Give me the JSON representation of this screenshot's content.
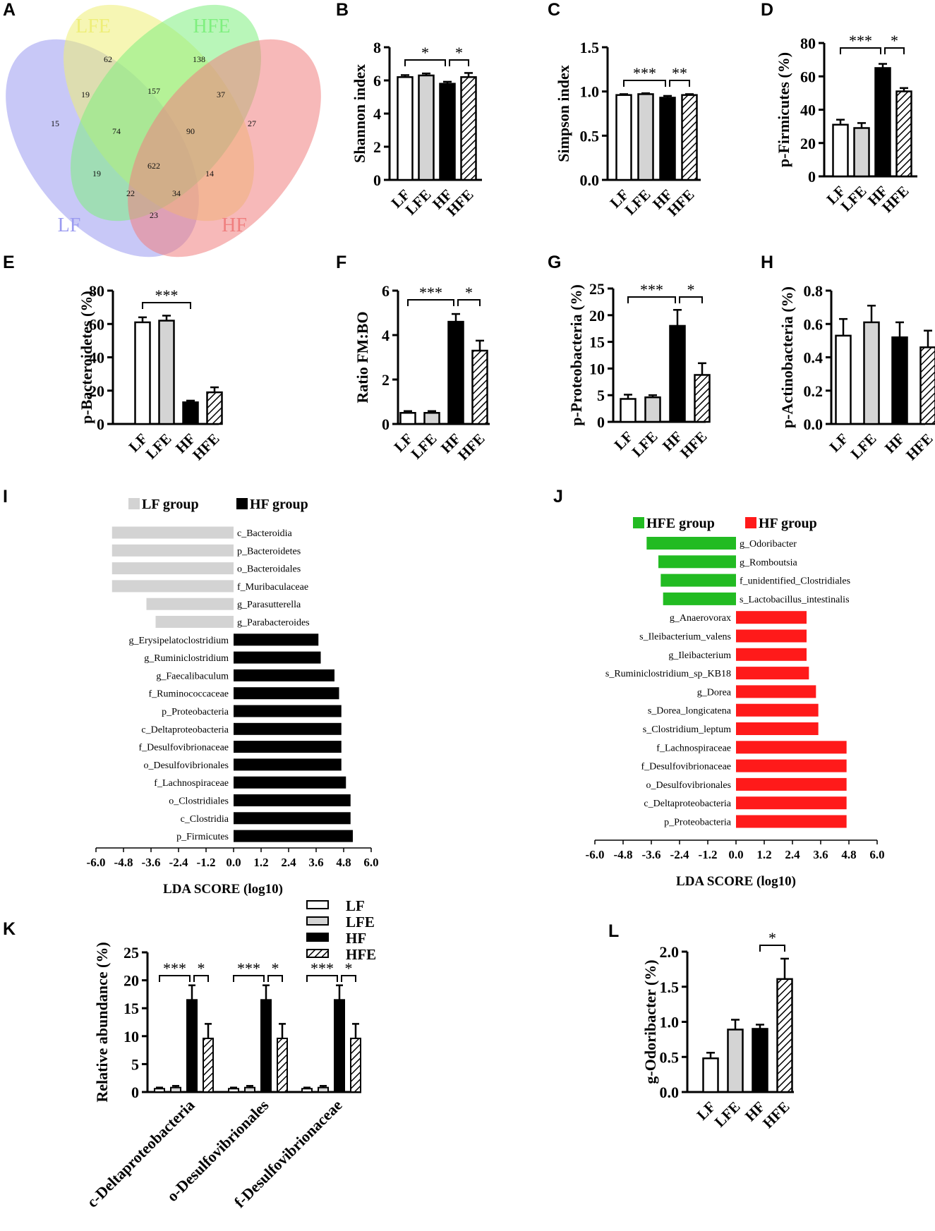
{
  "panel_labels": [
    "A",
    "B",
    "C",
    "D",
    "E",
    "F",
    "G",
    "H",
    "I",
    "J",
    "K",
    "L"
  ],
  "colors": {
    "LF": "#ffffff",
    "LFE": "#d4d4d4",
    "HF": "#000000",
    "HFE": "hatch",
    "lda_lf": "#d3d3d3",
    "lda_hf": "#000000",
    "lda_hfe": "#22bb22",
    "lda_hf_red": "#ff1a1a"
  },
  "chart_data": [
    {
      "panel": "A",
      "type": "venn",
      "sets": [
        {
          "name": "LF",
          "color": "#9b9bf0"
        },
        {
          "name": "LFE",
          "color": "#eeee77"
        },
        {
          "name": "HFE",
          "color": "#7fef7f"
        },
        {
          "name": "HF",
          "color": "#f07f7f"
        }
      ],
      "counts": {
        "LF": 15,
        "LFE": 62,
        "HFE": 138,
        "HF": 27,
        "LF&LFE": 19,
        "LFE&HFE": 157,
        "HFE&HF": 37,
        "LF&HF": 23,
        "LF&HFE": 19,
        "LFE&HF": 14,
        "LF&LFE&HFE": 74,
        "LFE&HFE&HF": 90,
        "LF&LFE&HF": 22,
        "LF&HFE&HF": 34,
        "all": 622
      }
    },
    {
      "panel": "B",
      "type": "bar",
      "categories": [
        "LF",
        "LFE",
        "HF",
        "HFE"
      ],
      "values": [
        6.2,
        6.3,
        5.8,
        6.2
      ],
      "errors": [
        0.12,
        0.12,
        0.12,
        0.25
      ],
      "ylabel": "Shannon index",
      "ylim": [
        0,
        8
      ],
      "yticks": [
        "0",
        "2",
        "4",
        "6",
        "8"
      ],
      "sig": [
        {
          "from": 0,
          "to": 2,
          "label": "*"
        },
        {
          "from": 2,
          "to": 3,
          "label": "*"
        }
      ]
    },
    {
      "panel": "C",
      "type": "bar",
      "categories": [
        "LF",
        "LFE",
        "HF",
        "HFE"
      ],
      "values": [
        0.96,
        0.97,
        0.93,
        0.96
      ],
      "errors": [
        0.01,
        0.01,
        0.02,
        0.01
      ],
      "ylabel": "Simpson index",
      "ylim": [
        0,
        1.5
      ],
      "yticks": [
        "0.0",
        "0.5",
        "1.0",
        "1.5"
      ],
      "sig": [
        {
          "from": 0,
          "to": 2,
          "label": "***"
        },
        {
          "from": 2,
          "to": 3,
          "label": "**"
        }
      ]
    },
    {
      "panel": "D",
      "type": "bar",
      "categories": [
        "LF",
        "LFE",
        "HF",
        "HFE"
      ],
      "values": [
        31,
        29,
        65,
        51
      ],
      "errors": [
        3,
        3,
        2.5,
        2
      ],
      "ylabel": "p-Firmicutes (%)",
      "ylim": [
        0,
        80
      ],
      "yticks": [
        "0",
        "20",
        "40",
        "60",
        "80"
      ],
      "sig": [
        {
          "from": 0,
          "to": 2,
          "label": "***"
        },
        {
          "from": 2,
          "to": 3,
          "label": "*"
        }
      ]
    },
    {
      "panel": "E",
      "type": "bar",
      "categories": [
        "LF",
        "LFE",
        "HF",
        "HFE"
      ],
      "values": [
        61,
        62,
        13,
        19
      ],
      "errors": [
        3,
        3,
        1,
        3
      ],
      "ylabel": "p-Bacteroidetes (%)",
      "ylim": [
        0,
        80
      ],
      "yticks": [
        "0",
        "20",
        "40",
        "60",
        "80"
      ],
      "sig": [
        {
          "from": 0,
          "to": 2,
          "label": "***"
        }
      ]
    },
    {
      "panel": "F",
      "type": "bar",
      "categories": [
        "LF",
        "LFE",
        "HF",
        "HFE"
      ],
      "values": [
        0.5,
        0.5,
        4.6,
        3.3
      ],
      "errors": [
        0.08,
        0.08,
        0.35,
        0.45
      ],
      "ylabel": "Ratio FM:BO",
      "ylim": [
        0,
        6
      ],
      "yticks": [
        "0",
        "2",
        "4",
        "6"
      ],
      "sig": [
        {
          "from": 0,
          "to": 2,
          "label": "***"
        },
        {
          "from": 2,
          "to": 3,
          "label": "*"
        }
      ]
    },
    {
      "panel": "G",
      "type": "bar",
      "categories": [
        "LF",
        "LFE",
        "HF",
        "HFE"
      ],
      "values": [
        4.3,
        4.6,
        18,
        8.8
      ],
      "errors": [
        0.8,
        0.4,
        3,
        2.2
      ],
      "ylabel": "p-Proteobacteria (%)",
      "ylim": [
        0,
        25
      ],
      "yticks": [
        "0",
        "5",
        "10",
        "15",
        "20",
        "25"
      ],
      "sig": [
        {
          "from": 0,
          "to": 2,
          "label": "***"
        },
        {
          "from": 2,
          "to": 3,
          "label": "*"
        }
      ]
    },
    {
      "panel": "H",
      "type": "bar",
      "categories": [
        "LF",
        "LFE",
        "HF",
        "HFE"
      ],
      "values": [
        0.53,
        0.61,
        0.52,
        0.46
      ],
      "errors": [
        0.1,
        0.1,
        0.09,
        0.1
      ],
      "ylabel": "p-Actinobacteria (%)",
      "ylim": [
        0,
        0.8
      ],
      "yticks": [
        "0.0",
        "0.2",
        "0.4",
        "0.6",
        "0.8"
      ],
      "sig": []
    },
    {
      "panel": "I",
      "type": "lda_bar",
      "xlabel": "LDA SCORE (log10)",
      "xlim": [
        -6,
        6
      ],
      "xticks": [
        "-6.0",
        "-4.8",
        "-3.6",
        "-2.4",
        "-1.2",
        "0.0",
        "1.2",
        "2.4",
        "3.6",
        "4.8",
        "6.0"
      ],
      "legend": [
        {
          "name": "LF group",
          "color": "#d3d3d3"
        },
        {
          "name": "HF group",
          "color": "#000000"
        }
      ],
      "bars": [
        {
          "label": "c_Bacteroidia",
          "value": -5.3,
          "group": "LF group"
        },
        {
          "label": "p_Bacteroidetes",
          "value": -5.3,
          "group": "LF group"
        },
        {
          "label": "o_Bacteroidales",
          "value": -5.3,
          "group": "LF group"
        },
        {
          "label": "f_Muribaculaceae",
          "value": -5.3,
          "group": "LF group"
        },
        {
          "label": "g_Parasutterella",
          "value": -3.8,
          "group": "LF group"
        },
        {
          "label": "g_Parabacteroides",
          "value": -3.4,
          "group": "LF group"
        },
        {
          "label": "g_Erysipelatoclostridium",
          "value": 3.7,
          "group": "HF group"
        },
        {
          "label": "g_Ruminiclostridium",
          "value": 3.8,
          "group": "HF group"
        },
        {
          "label": "g_Faecalibaculum",
          "value": 4.4,
          "group": "HF group"
        },
        {
          "label": "f_Ruminococcaceae",
          "value": 4.6,
          "group": "HF group"
        },
        {
          "label": "p_Proteobacteria",
          "value": 4.7,
          "group": "HF group"
        },
        {
          "label": "c_Deltaproteobacteria",
          "value": 4.7,
          "group": "HF group"
        },
        {
          "label": "f_Desulfovibrionaceae",
          "value": 4.7,
          "group": "HF group"
        },
        {
          "label": "o_Desulfovibrionales",
          "value": 4.7,
          "group": "HF group"
        },
        {
          "label": "f_Lachnospiraceae",
          "value": 4.9,
          "group": "HF group"
        },
        {
          "label": "o_Clostridiales",
          "value": 5.1,
          "group": "HF group"
        },
        {
          "label": "c_Clostridia",
          "value": 5.1,
          "group": "HF group"
        },
        {
          "label": "p_Firmicutes",
          "value": 5.2,
          "group": "HF group"
        }
      ]
    },
    {
      "panel": "J",
      "type": "lda_bar",
      "xlabel": "LDA SCORE (log10)",
      "xlim": [
        -6,
        6
      ],
      "xticks": [
        "-6.0",
        "-4.8",
        "-3.6",
        "-2.4",
        "-1.2",
        "0.0",
        "1.2",
        "2.4",
        "3.6",
        "4.8",
        "6.0"
      ],
      "legend": [
        {
          "name": "HFE group",
          "color": "#22bb22"
        },
        {
          "name": "HF group",
          "color": "#ff1a1a"
        }
      ],
      "bars": [
        {
          "label": "g_Odoribacter",
          "value": -3.8,
          "group": "HFE group"
        },
        {
          "label": "g_Romboutsia",
          "value": -3.3,
          "group": "HFE group"
        },
        {
          "label": "f_unidentified_Clostridiales",
          "value": -3.2,
          "group": "HFE group"
        },
        {
          "label": "s_Lactobacillus_intestinalis",
          "value": -3.1,
          "group": "HFE group"
        },
        {
          "label": "g_Anaerovorax",
          "value": 3.0,
          "group": "HF group"
        },
        {
          "label": "s_Ileibacterium_valens",
          "value": 3.0,
          "group": "HF group"
        },
        {
          "label": "g_Ileibacterium",
          "value": 3.0,
          "group": "HF group"
        },
        {
          "label": "s_Ruminiclostridium_sp_KB18",
          "value": 3.1,
          "group": "HF group"
        },
        {
          "label": "g_Dorea",
          "value": 3.4,
          "group": "HF group"
        },
        {
          "label": "s_Dorea_longicatena",
          "value": 3.5,
          "group": "HF group"
        },
        {
          "label": "s_Clostridium_leptum",
          "value": 3.5,
          "group": "HF group"
        },
        {
          "label": "f_Lachnospiraceae",
          "value": 4.7,
          "group": "HF group"
        },
        {
          "label": "f_Desulfovibrionaceae",
          "value": 4.7,
          "group": "HF group"
        },
        {
          "label": "o_Desulfovibrionales",
          "value": 4.7,
          "group": "HF group"
        },
        {
          "label": "c_Deltaproteobacteria",
          "value": 4.7,
          "group": "HF group"
        },
        {
          "label": "p_Proteobacteria",
          "value": 4.7,
          "group": "HF group"
        }
      ]
    },
    {
      "panel": "K",
      "type": "grouped_bar",
      "ylabel": "Relative abundance (%)",
      "ylim": [
        0,
        25
      ],
      "yticks": [
        "0",
        "5",
        "10",
        "15",
        "20",
        "25"
      ],
      "categories": [
        "c-Deltaproteobacteria",
        "o-Desulfovibrionales",
        "f-Desulfovibrionaceae"
      ],
      "legend": [
        "LF",
        "LFE",
        "HF",
        "HFE"
      ],
      "series": [
        {
          "name": "LF",
          "values": [
            0.6,
            0.6,
            0.6
          ],
          "errors": [
            0.2,
            0.2,
            0.2
          ]
        },
        {
          "name": "LFE",
          "values": [
            0.8,
            0.8,
            0.8
          ],
          "errors": [
            0.3,
            0.3,
            0.3
          ]
        },
        {
          "name": "HF",
          "values": [
            16.5,
            16.5,
            16.5
          ],
          "errors": [
            2.6,
            2.6,
            2.6
          ]
        },
        {
          "name": "HFE",
          "values": [
            9.6,
            9.6,
            9.6
          ],
          "errors": [
            2.6,
            2.6,
            2.6
          ]
        }
      ],
      "sig": [
        {
          "from": 0,
          "to": 2,
          "label": "***"
        },
        {
          "from": 2,
          "to": 3,
          "label": "*"
        }
      ]
    },
    {
      "panel": "L",
      "type": "bar",
      "categories": [
        "LF",
        "LFE",
        "HF",
        "HFE"
      ],
      "values": [
        0.48,
        0.89,
        0.9,
        1.61
      ],
      "errors": [
        0.08,
        0.14,
        0.06,
        0.29
      ],
      "ylabel": "g-Odoribacter (%)",
      "ylim": [
        0,
        2
      ],
      "yticks": [
        "0.0",
        "0.5",
        "1.0",
        "1.5",
        "2.0"
      ],
      "sig": [
        {
          "from": 2,
          "to": 3,
          "label": "*"
        }
      ]
    }
  ]
}
